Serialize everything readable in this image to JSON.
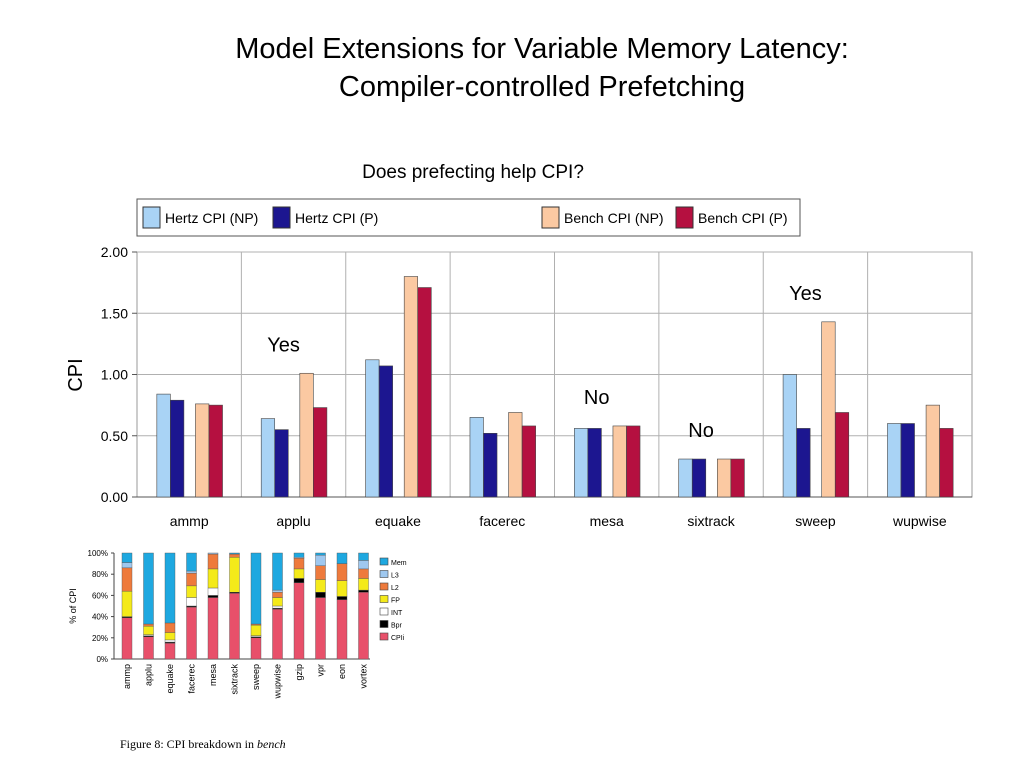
{
  "slide": {
    "title_line1": "Model Extensions for Variable Memory Latency:",
    "title_line2": "Compiler-controlled Prefetching"
  },
  "chart_data": [
    {
      "type": "bar",
      "title": "Does prefecting help CPI?",
      "xlabel": "",
      "ylabel": "CPI",
      "ylim": [
        0,
        2.0
      ],
      "yticks": [
        "0.00",
        "0.50",
        "1.00",
        "1.50",
        "2.00"
      ],
      "grid": true,
      "legend": "top",
      "categories": [
        "ammp",
        "applu",
        "equake",
        "facerec",
        "mesa",
        "sixtrack",
        "sweep",
        "wupwise"
      ],
      "series": [
        {
          "name": "Hertz CPI (NP)",
          "color": "#a9d3f5",
          "values": [
            0.84,
            0.64,
            1.12,
            0.65,
            0.56,
            0.31,
            1.0,
            0.6
          ]
        },
        {
          "name": "Hertz CPI (P)",
          "color": "#1c1690",
          "values": [
            0.79,
            0.55,
            1.07,
            0.52,
            0.56,
            0.31,
            0.56,
            0.6
          ]
        },
        {
          "name": "Bench CPI (NP)",
          "color": "#fbc9a2",
          "values": [
            0.76,
            1.01,
            1.8,
            0.69,
            0.58,
            0.31,
            1.43,
            0.75
          ]
        },
        {
          "name": "Bench CPI (P)",
          "color": "#b51040",
          "values": [
            0.75,
            0.73,
            1.71,
            0.58,
            0.58,
            0.31,
            0.69,
            0.56
          ]
        }
      ],
      "annotations": [
        {
          "category": "applu",
          "text": "Yes"
        },
        {
          "category": "mesa",
          "text": "No"
        },
        {
          "category": "sixtrack",
          "text": "No"
        },
        {
          "category": "sweep",
          "text": "Yes"
        }
      ]
    },
    {
      "type": "bar",
      "stacked": true,
      "title": "Figure 8: CPI breakdown in bench",
      "caption_prefix": "Figure 8: CPI breakdown in ",
      "caption_italic": "bench",
      "xlabel": "",
      "ylabel": "% of CPI",
      "ylim": [
        0,
        100
      ],
      "yticks": [
        "0%",
        "20%",
        "40%",
        "60%",
        "80%",
        "100%"
      ],
      "legend": "right",
      "categories": [
        "ammp",
        "applu",
        "equake",
        "facerec",
        "mesa",
        "sixtrack",
        "sweep",
        "wupwise",
        "gzip",
        "vpr",
        "eon",
        "vortex"
      ],
      "series": [
        {
          "name": "CPIi",
          "color": "#e8506a",
          "values": [
            39,
            21,
            15,
            49,
            58,
            62,
            20,
            47,
            72,
            58,
            56,
            63
          ]
        },
        {
          "name": "Bpr",
          "color": "#000000",
          "values": [
            1,
            1,
            1,
            1,
            2,
            1,
            1,
            1,
            4,
            5,
            3,
            2
          ]
        },
        {
          "name": "INT",
          "color": "#ffffff",
          "values": [
            0,
            1,
            2,
            8,
            7,
            0,
            1,
            2,
            0,
            0,
            0,
            0
          ]
        },
        {
          "name": "FP",
          "color": "#f4ea1a",
          "values": [
            24,
            8,
            7,
            11,
            18,
            33,
            10,
            8,
            9,
            12,
            15,
            11
          ]
        },
        {
          "name": "L2",
          "color": "#ee7a3c",
          "values": [
            22,
            2,
            9,
            12,
            14,
            3,
            1,
            5,
            10,
            13,
            16,
            9
          ]
        },
        {
          "name": "L3",
          "color": "#9fc8ef",
          "values": [
            5,
            0,
            0,
            2,
            1,
            0,
            0,
            2,
            1,
            10,
            0,
            8
          ]
        },
        {
          "name": "Mem",
          "color": "#1ea8e0",
          "values": [
            9,
            67,
            66,
            17,
            0,
            1,
            67,
            35,
            4,
            2,
            10,
            7
          ]
        }
      ]
    }
  ]
}
